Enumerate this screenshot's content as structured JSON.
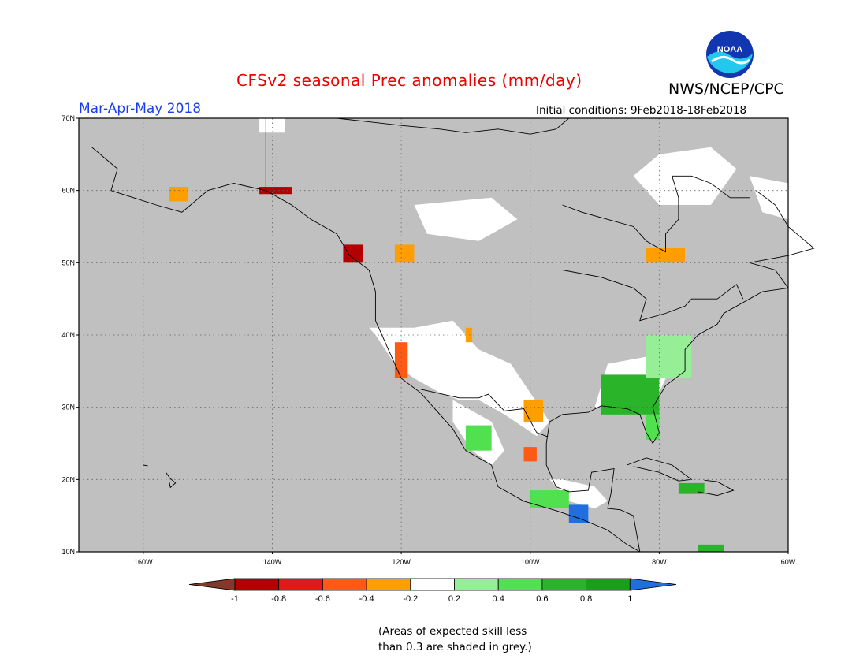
{
  "header": {
    "title": "CFSv2 seasonal Prec anomalies (mm/day)",
    "organization": "NWS/NCEP/CPC",
    "logo_text": "NOAA",
    "period": "Mar-Apr-May 2018",
    "initial_conditions": "Initial conditions: 9Feb2018-18Feb2018"
  },
  "map": {
    "region": "North America",
    "projection": "cylindrical equidistant",
    "lon_range": [
      -170,
      -60
    ],
    "lat_range": [
      10,
      70
    ],
    "lat_labels": [
      "70N",
      "60N",
      "50N",
      "40N",
      "30N",
      "20N",
      "10N"
    ],
    "lon_labels": [
      "160W",
      "140W",
      "120W",
      "100W",
      "80W",
      "60W"
    ],
    "grey_meaning": "skill less than 0.3",
    "colors": {
      "grey": "#c0c0c0",
      "neutral": "#ffffff",
      "ocean_boundary": "#000000"
    }
  },
  "legend": {
    "bins": [
      {
        "color": "#7f3a2a"
      },
      {
        "color": "#b40000"
      },
      {
        "color": "#e01a1a"
      },
      {
        "color": "#ff5a14"
      },
      {
        "color": "#ff9e00"
      },
      {
        "color": "#ffffff"
      },
      {
        "color": "#96ee96"
      },
      {
        "color": "#50e050"
      },
      {
        "color": "#2ab42a"
      },
      {
        "color": "#18a018"
      },
      {
        "color": "#1f6fe0"
      }
    ],
    "ticks": [
      "-1",
      "-0.8",
      "-0.6",
      "-0.4",
      "-0.2",
      "0.2",
      "0.4",
      "0.6",
      "0.8",
      "1"
    ]
  },
  "footnote": {
    "line1": "(Areas of expected skill less",
    "line2": "than 0.3 are shaded in grey.)"
  },
  "anomaly_patches": [
    {
      "name": "alaska-sw-dry",
      "value": -0.3,
      "lon": [
        -156,
        -153
      ],
      "lat": [
        58.5,
        60.5
      ]
    },
    {
      "name": "gulf-alaska-dry",
      "value": -0.9,
      "lon": [
        -142,
        -137
      ],
      "lat": [
        59.5,
        60.5
      ]
    },
    {
      "name": "bc-coast-dry",
      "value": -0.9,
      "lon": [
        -129,
        -126
      ],
      "lat": [
        50,
        52.5
      ]
    },
    {
      "name": "bc-interior-dry",
      "value": -0.3,
      "lon": [
        -121,
        -118
      ],
      "lat": [
        50,
        52.5
      ]
    },
    {
      "name": "california-dry",
      "value": -0.5,
      "lon": [
        -121,
        -119
      ],
      "lat": [
        34,
        39
      ]
    },
    {
      "name": "great-basin-dry",
      "value": -0.3,
      "lon": [
        -110,
        -109
      ],
      "lat": [
        39,
        41
      ]
    },
    {
      "name": "texas-dry",
      "value": -0.3,
      "lon": [
        -101,
        -98
      ],
      "lat": [
        28,
        31
      ]
    },
    {
      "name": "ne-mexico-dry",
      "value": -0.5,
      "lon": [
        -101,
        -99
      ],
      "lat": [
        22.5,
        24.5
      ]
    },
    {
      "name": "quebec-dry",
      "value": -0.3,
      "lon": [
        -82,
        -76
      ],
      "lat": [
        50,
        52
      ]
    },
    {
      "name": "southeast-wet",
      "value": 0.7,
      "lon": [
        -89,
        -80
      ],
      "lat": [
        29,
        34.5
      ]
    },
    {
      "name": "florida-wet",
      "value": 0.4,
      "lon": [
        -82,
        -80
      ],
      "lat": [
        25.5,
        29
      ]
    },
    {
      "name": "mid-atlantic-wet",
      "value": 0.3,
      "lon": [
        -82,
        -75
      ],
      "lat": [
        34,
        40
      ]
    },
    {
      "name": "nw-mexico-wet",
      "value": 0.4,
      "lon": [
        -110,
        -106
      ],
      "lat": [
        24,
        27.5
      ]
    },
    {
      "name": "s-mexico-wet",
      "value": 0.5,
      "lon": [
        -100,
        -94
      ],
      "lat": [
        16,
        18.5
      ]
    },
    {
      "name": "guatemala-wet",
      "value": 1.0,
      "lon": [
        -94,
        -91
      ],
      "lat": [
        14,
        16.5
      ]
    },
    {
      "name": "caribbean-wet",
      "value": 0.6,
      "lon": [
        -77,
        -73
      ],
      "lat": [
        18,
        19.5
      ]
    },
    {
      "name": "colombia-wet",
      "value": 0.6,
      "lon": [
        -74,
        -70
      ],
      "lat": [
        10,
        11
      ]
    }
  ]
}
